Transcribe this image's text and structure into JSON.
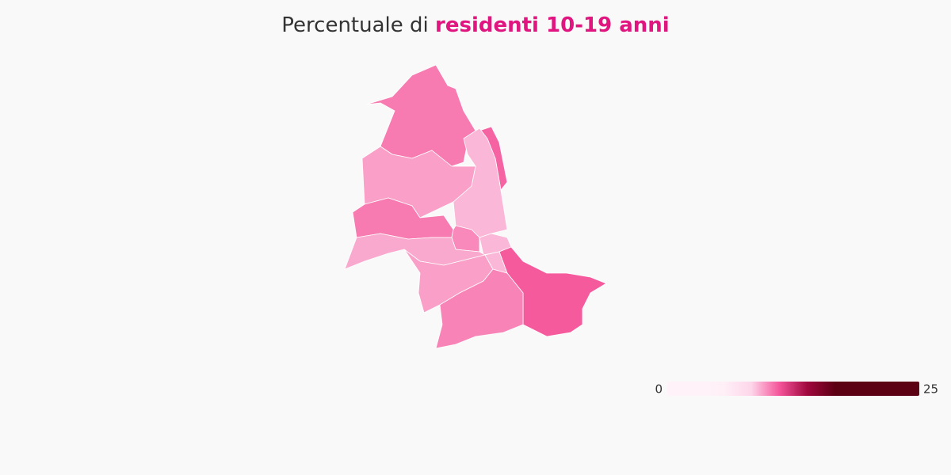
{
  "chart_data": {
    "type": "choropleth",
    "title_prefix": "Percentuale di ",
    "title_highlight": "residenti 10-19 anni",
    "values": [
      10.3,
      10.8,
      9.0,
      9.5,
      10.3,
      10.0,
      9.0,
      9.3,
      9.5,
      11.0,
      10.1,
      9.0
    ],
    "clim": [
      0,
      25
    ],
    "colorscale": [
      "#fff3f9",
      "#fff3f9",
      "#fff0f7",
      "#fdd6ea",
      "#f5559a",
      "#a0083e",
      "#5c0014",
      "#5c0014",
      "#5c0014",
      "#5c0014"
    ],
    "highlight_color": "#e0157f"
  }
}
